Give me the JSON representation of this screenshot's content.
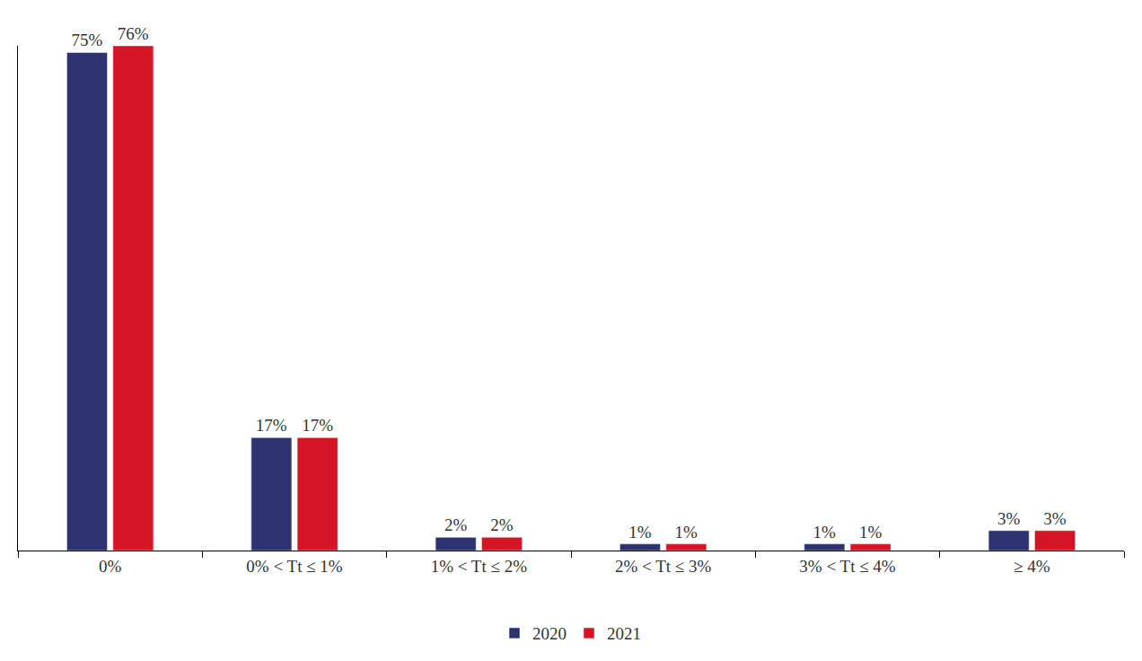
{
  "chart_data": {
    "type": "bar",
    "categories": [
      "0%",
      "0% < Tt ≤ 1%",
      "1% < Tt ≤ 2%",
      "2% < Tt ≤ 3%",
      "3% < Tt ≤ 4%",
      "≥ 4%"
    ],
    "series": [
      {
        "name": "2020",
        "color": "#2e3270",
        "values": [
          75,
          17,
          2,
          1,
          1,
          3
        ],
        "value_labels": [
          "75%",
          "17%",
          "2%",
          "1%",
          "1%",
          "3%"
        ]
      },
      {
        "name": "2021",
        "color": "#d51525",
        "values": [
          76,
          17,
          2,
          1,
          1,
          3
        ],
        "value_labels": [
          "76%",
          "17%",
          "2%",
          "1%",
          "1%",
          "3%"
        ]
      }
    ],
    "ylim": [
      0,
      76
    ],
    "yticks": [],
    "grid": false,
    "legend": "bottom",
    "data_labels": true,
    "tick_labels": "x"
  }
}
